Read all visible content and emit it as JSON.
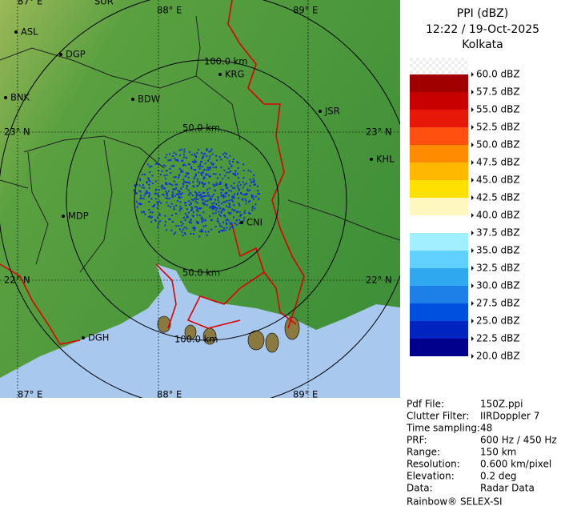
{
  "header": {
    "title": "PPI (dBZ)",
    "time": "12:22 / 19-Oct-2025",
    "site": "Kolkata"
  },
  "legend": {
    "items": [
      {
        "label": "60.0 dBZ",
        "color": "#ffffff"
      },
      {
        "label": "57.5 dBZ",
        "color": "#a00000"
      },
      {
        "label": "55.0 dBZ",
        "color": "#c80000"
      },
      {
        "label": "52.5 dBZ",
        "color": "#e81808"
      },
      {
        "label": "50.0 dBZ",
        "color": "#ff5010"
      },
      {
        "label": "47.5 dBZ",
        "color": "#ff8c00"
      },
      {
        "label": "45.0 dBZ",
        "color": "#ffb800"
      },
      {
        "label": "42.5 dBZ",
        "color": "#ffe000"
      },
      {
        "label": "40.0 dBZ",
        "color": "#fff6c0"
      },
      {
        "label": "37.5 dBZ",
        "color": "#ffffff"
      },
      {
        "label": "35.0 dBZ",
        "color": "#a0f0ff"
      },
      {
        "label": "32.5 dBZ",
        "color": "#60d0ff"
      },
      {
        "label": "30.0 dBZ",
        "color": "#30a8f0"
      },
      {
        "label": "27.5 dBZ",
        "color": "#1c80e8"
      },
      {
        "label": "25.0 dBZ",
        "color": "#0050e0"
      },
      {
        "label": "22.5 dBZ",
        "color": "#0024c0"
      },
      {
        "label": "20.0 dBZ",
        "color": "#00008c"
      }
    ]
  },
  "info": {
    "rows": [
      [
        "Pdf File:",
        "150Z.ppi"
      ],
      [
        "Clutter Filter:",
        "IIRDoppler 7"
      ],
      [
        "Time sampling:",
        "48"
      ],
      [
        "PRF:",
        "600 Hz / 450 Hz"
      ],
      [
        "Range:",
        "150 km"
      ],
      [
        "Resolution:",
        "0.600 km/pixel"
      ],
      [
        "Elevation:",
        "0.2 deg"
      ],
      [
        "Data:",
        "Radar Data"
      ]
    ],
    "footer": "Rainbow® SELEX-SI"
  },
  "map": {
    "labels": [
      "87° E",
      "SUR",
      "88° E",
      "89° E",
      "ASL",
      "DGP",
      "100.0 km",
      "KRG",
      "BNK",
      "BDW",
      "JSR",
      "23° N",
      "50.0 km",
      "23° N",
      "KHL",
      "MDP",
      "CNI",
      "50.0 km",
      "22° N",
      "22° N",
      "DGH",
      "100.0 km",
      "87° E",
      "88° E",
      "89° E"
    ]
  }
}
